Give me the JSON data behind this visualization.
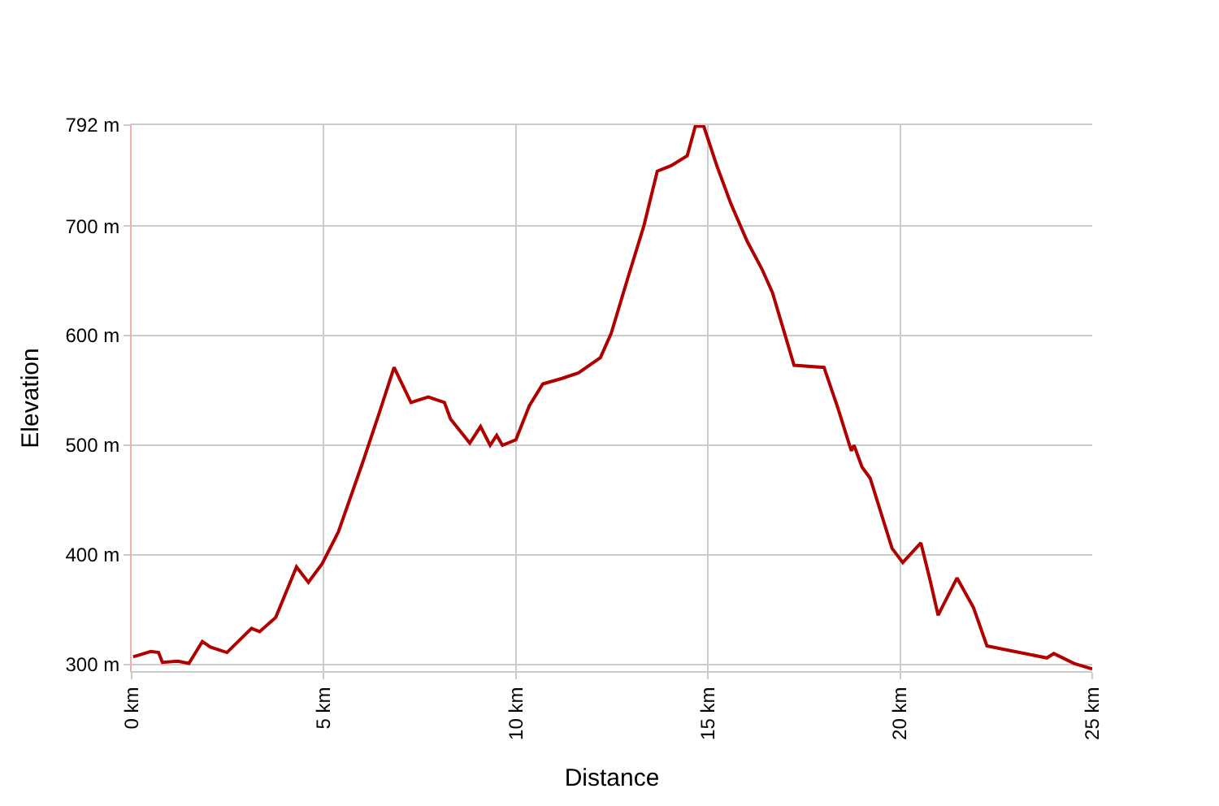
{
  "chart_data": {
    "type": "line",
    "xlabel": "Distance",
    "ylabel": "Elevation",
    "x": [
      0.04,
      0.5,
      0.7,
      0.8,
      1.2,
      1.49,
      1.84,
      2.05,
      2.48,
      3.12,
      3.33,
      3.75,
      4.29,
      4.6,
      4.96,
      5.38,
      6.02,
      6.44,
      6.83,
      7.27,
      7.72,
      8.14,
      8.3,
      8.8,
      9.08,
      9.33,
      9.5,
      9.65,
      10.0,
      10.35,
      10.7,
      11.2,
      11.63,
      12.2,
      12.48,
      12.9,
      13.33,
      13.68,
      14.04,
      14.46,
      14.67,
      14.89,
      15.24,
      15.6,
      16.02,
      16.4,
      16.68,
      17.24,
      18.02,
      18.38,
      18.73,
      18.8,
      19.01,
      19.22,
      19.79,
      20.07,
      20.54,
      20.78,
      20.99,
      21.48,
      21.91,
      22.26,
      22.97,
      23.82,
      24.0,
      24.53,
      25.0
    ],
    "series": [
      {
        "color": "#b00000",
        "values": [
          307,
          312,
          311,
          302,
          303,
          301,
          321,
          316,
          311,
          333,
          330,
          343,
          389,
          375,
          392,
          421,
          485,
          529,
          571,
          539,
          544,
          539,
          524,
          502,
          517,
          500,
          509,
          500,
          505,
          536,
          556,
          561,
          566,
          580,
          602,
          651,
          700,
          750,
          755,
          764,
          791,
          791,
          754,
          720,
          686,
          661,
          639,
          573,
          571,
          534,
          495,
          500,
          480,
          470,
          406,
          393,
          411,
          377,
          345,
          379,
          352,
          317,
          312,
          306,
          310,
          301,
          296
        ]
      }
    ],
    "xlim": [
      0,
      25
    ],
    "ylim": [
      294,
      792
    ],
    "xticks": [
      {
        "value": 0,
        "label": "0 km"
      },
      {
        "value": 5,
        "label": "5 km"
      },
      {
        "value": 10,
        "label": "10 km"
      },
      {
        "value": 15,
        "label": "15 km"
      },
      {
        "value": 20,
        "label": "20 km"
      },
      {
        "value": 25,
        "label": "25 km"
      }
    ],
    "yticks": [
      {
        "value": 300,
        "label": "300 m"
      },
      {
        "value": 400,
        "label": "400 m"
      },
      {
        "value": 500,
        "label": "500 m"
      },
      {
        "value": 600,
        "label": "600 m"
      },
      {
        "value": 700,
        "label": "700 m"
      },
      {
        "value": 792,
        "label": "792 m"
      }
    ],
    "grid": true,
    "line_style": "solid",
    "marker": "none"
  }
}
